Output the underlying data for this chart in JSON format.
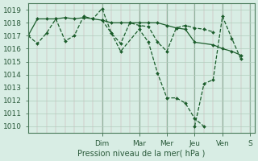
{
  "background_color": "#d8ede4",
  "plot_bg": "#d8ede4",
  "grid_color": "#b0ccbc",
  "line_color": "#1a5c2a",
  "ylabel": "Pression niveau de la mer( hPa )",
  "ylim": [
    1009.5,
    1019.5
  ],
  "yticks": [
    1010,
    1011,
    1012,
    1013,
    1014,
    1015,
    1016,
    1017,
    1018,
    1019
  ],
  "day_labels": [
    "Dim",
    "Mar",
    "Mer",
    "Jeu",
    "Ven",
    "S"
  ],
  "day_tick_positions": [
    0.333,
    0.5,
    0.625,
    0.75,
    0.875,
    1.0
  ],
  "xlim": [
    0.0,
    1.02
  ],
  "series": [
    {
      "x": [
        0.0,
        0.042,
        0.083,
        0.125,
        0.167,
        0.208,
        0.25,
        0.292,
        0.333,
        0.375,
        0.417,
        0.458,
        0.5,
        0.542,
        0.583,
        0.625,
        0.667,
        0.708,
        0.75,
        0.833,
        0.875,
        0.917,
        0.958
      ],
      "y": [
        1017.0,
        1018.3,
        1018.3,
        1018.3,
        1018.4,
        1018.3,
        1018.4,
        1018.3,
        1018.2,
        1018.0,
        1018.0,
        1018.0,
        1018.0,
        1018.0,
        1018.0,
        1017.8,
        1017.6,
        1017.5,
        1016.5,
        1016.3,
        1016.0,
        1015.8,
        1015.5
      ],
      "ls": "-"
    },
    {
      "x": [
        0.0,
        0.042,
        0.083,
        0.125,
        0.167,
        0.208,
        0.25,
        0.292,
        0.333,
        0.375,
        0.417,
        0.458,
        0.5,
        0.542,
        0.583,
        0.625,
        0.667,
        0.708,
        0.75,
        0.792,
        0.833
      ],
      "y": [
        1017.0,
        1016.4,
        1017.2,
        1018.3,
        1016.6,
        1017.0,
        1018.5,
        1018.3,
        1019.1,
        1017.2,
        1016.4,
        1018.0,
        1017.8,
        1017.7,
        1016.5,
        1015.8,
        1017.6,
        1017.8,
        1017.6,
        1017.5,
        1017.3
      ],
      "ls": "--"
    },
    {
      "x": [
        0.333,
        0.375,
        0.417,
        0.5,
        0.542,
        0.583,
        0.625,
        0.667,
        0.708,
        0.75,
        0.792
      ],
      "y": [
        1018.2,
        1017.2,
        1015.8,
        1017.5,
        1016.5,
        1014.1,
        1012.2,
        1012.2,
        1011.8,
        1010.6,
        1010.0
      ],
      "ls": "--"
    },
    {
      "x": [
        0.75,
        0.792,
        0.833,
        0.875,
        0.917,
        0.958
      ],
      "y": [
        1010.0,
        1013.3,
        1013.6,
        1018.5,
        1016.8,
        1015.2
      ],
      "ls": "--"
    }
  ]
}
